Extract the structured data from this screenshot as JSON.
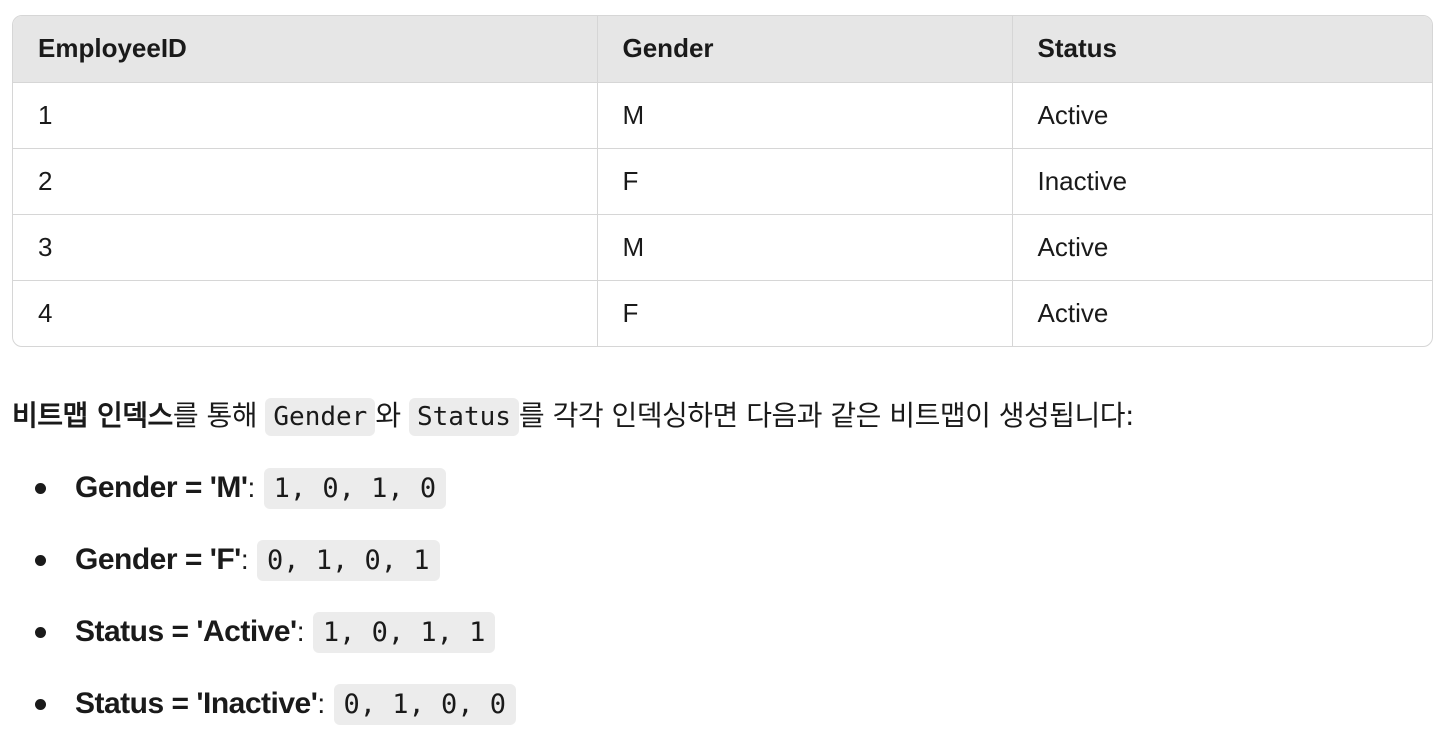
{
  "table": {
    "headers": [
      "EmployeeID",
      "Gender",
      "Status"
    ],
    "rows": [
      [
        "1",
        "M",
        "Active"
      ],
      [
        "2",
        "F",
        "Inactive"
      ],
      [
        "3",
        "M",
        "Active"
      ],
      [
        "4",
        "F",
        "Active"
      ]
    ]
  },
  "paragraph": {
    "bold_term": "비트맵 인덱스",
    "text_1": "를 통해 ",
    "code_1": "Gender",
    "text_2": "와 ",
    "code_2": "Status",
    "text_3": "를 각각 인덱싱하면 다음과 같은 비트맵이 생성됩니다:"
  },
  "bitmaps": [
    {
      "label": "Gender = 'M'",
      "colon": ":",
      "bits": "1, 0, 1, 0"
    },
    {
      "label": "Gender = 'F'",
      "colon": ":",
      "bits": "0, 1, 0, 1"
    },
    {
      "label": "Status = 'Active'",
      "colon": ":",
      "bits": "1, 0, 1, 1"
    },
    {
      "label": "Status = 'Inactive'",
      "colon": ":",
      "bits": "0, 1, 0, 0"
    }
  ]
}
